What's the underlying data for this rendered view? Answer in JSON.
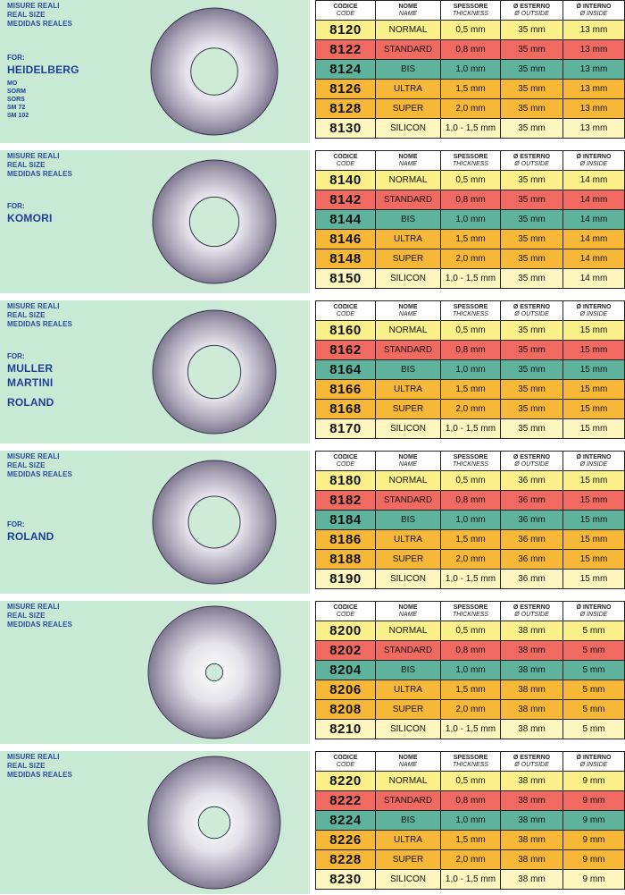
{
  "header": {
    "code": [
      "CODICE",
      "CODE"
    ],
    "name": [
      "NOME",
      "NAME"
    ],
    "thickness": [
      "SPESSORE",
      "THICKNESS"
    ],
    "outside": [
      "Ø ESTERNO",
      "Ø OUTSIDE"
    ],
    "inside": [
      "Ø INTERNO",
      "Ø INSIDE"
    ]
  },
  "size_labels": [
    "MISURE REALI",
    "REAL SIZE",
    "MEDIDAS REALES"
  ],
  "colors": {
    "NORMAL": "#fbf08a",
    "STANDARD": "#f06a62",
    "BIS": "#5fb39c",
    "ULTRA": "#f7b837",
    "SUPER": "#f7b837",
    "SILICON": "#fdf7bf"
  },
  "sections": [
    {
      "for_label": "FOR:",
      "brands": [
        "HEIDELBERG"
      ],
      "models": [
        "MO",
        "SORM",
        "SORS",
        "SM 72",
        "SM 102"
      ],
      "hole_ratio": 0.37,
      "rows": [
        {
          "code": "8120",
          "name": "NORMAL",
          "thickness": "0,5 mm",
          "outside": "35 mm",
          "inside": "13 mm"
        },
        {
          "code": "8122",
          "name": "STANDARD",
          "thickness": "0,8 mm",
          "outside": "35 mm",
          "inside": "13 mm"
        },
        {
          "code": "8124",
          "name": "BIS",
          "thickness": "1,0 mm",
          "outside": "35 mm",
          "inside": "13 mm"
        },
        {
          "code": "8126",
          "name": "ULTRA",
          "thickness": "1,5 mm",
          "outside": "35 mm",
          "inside": "13 mm"
        },
        {
          "code": "8128",
          "name": "SUPER",
          "thickness": "2,0 mm",
          "outside": "35 mm",
          "inside": "13 mm"
        },
        {
          "code": "8130",
          "name": "SILICON",
          "thickness": "1,0 - 1,5 mm",
          "outside": "35 mm",
          "inside": "13 mm"
        }
      ]
    },
    {
      "for_label": "FOR:",
      "brands": [
        "KOMORI"
      ],
      "models": [],
      "hole_ratio": 0.4,
      "rows": [
        {
          "code": "8140",
          "name": "NORMAL",
          "thickness": "0,5 mm",
          "outside": "35 mm",
          "inside": "14 mm"
        },
        {
          "code": "8142",
          "name": "STANDARD",
          "thickness": "0,8 mm",
          "outside": "35 mm",
          "inside": "14 mm"
        },
        {
          "code": "8144",
          "name": "BIS",
          "thickness": "1,0 mm",
          "outside": "35 mm",
          "inside": "14 mm"
        },
        {
          "code": "8146",
          "name": "ULTRA",
          "thickness": "1,5 mm",
          "outside": "35 mm",
          "inside": "14 mm"
        },
        {
          "code": "8148",
          "name": "SUPER",
          "thickness": "2,0 mm",
          "outside": "35 mm",
          "inside": "14 mm"
        },
        {
          "code": "8150",
          "name": "SILICON",
          "thickness": "1,0 - 1,5 mm",
          "outside": "35 mm",
          "inside": "14 mm"
        }
      ]
    },
    {
      "for_label": "FOR:",
      "brands": [
        "MULLER",
        "MARTINI",
        "ROLAND"
      ],
      "models": [],
      "hole_ratio": 0.43,
      "rows": [
        {
          "code": "8160",
          "name": "NORMAL",
          "thickness": "0,5 mm",
          "outside": "35 mm",
          "inside": "15 mm"
        },
        {
          "code": "8162",
          "name": "STANDARD",
          "thickness": "0,8 mm",
          "outside": "35 mm",
          "inside": "15 mm"
        },
        {
          "code": "8164",
          "name": "BIS",
          "thickness": "1,0 mm",
          "outside": "35 mm",
          "inside": "15 mm"
        },
        {
          "code": "8166",
          "name": "ULTRA",
          "thickness": "1,5 mm",
          "outside": "35 mm",
          "inside": "15 mm"
        },
        {
          "code": "8168",
          "name": "SUPER",
          "thickness": "2,0 mm",
          "outside": "35 mm",
          "inside": "15 mm"
        },
        {
          "code": "8170",
          "name": "SILICON",
          "thickness": "1,0 - 1,5 mm",
          "outside": "35 mm",
          "inside": "15 mm"
        }
      ]
    },
    {
      "for_label": "FOR:",
      "brands": [
        "ROLAND"
      ],
      "models": [],
      "hole_ratio": 0.42,
      "rows": [
        {
          "code": "8180",
          "name": "NORMAL",
          "thickness": "0,5 mm",
          "outside": "36 mm",
          "inside": "15 mm"
        },
        {
          "code": "8182",
          "name": "STANDARD",
          "thickness": "0,8 mm",
          "outside": "36 mm",
          "inside": "15 mm"
        },
        {
          "code": "8184",
          "name": "BIS",
          "thickness": "1,0 mm",
          "outside": "36 mm",
          "inside": "15 mm"
        },
        {
          "code": "8186",
          "name": "ULTRA",
          "thickness": "1,5 mm",
          "outside": "36 mm",
          "inside": "15 mm"
        },
        {
          "code": "8188",
          "name": "SUPER",
          "thickness": "2,0 mm",
          "outside": "36 mm",
          "inside": "15 mm"
        },
        {
          "code": "8190",
          "name": "SILICON",
          "thickness": "1,0 - 1,5 mm",
          "outside": "36 mm",
          "inside": "15 mm"
        }
      ]
    },
    {
      "for_label": "",
      "brands": [],
      "models": [],
      "hole_ratio": 0.13,
      "rows": [
        {
          "code": "8200",
          "name": "NORMAL",
          "thickness": "0,5 mm",
          "outside": "38 mm",
          "inside": "5 mm"
        },
        {
          "code": "8202",
          "name": "STANDARD",
          "thickness": "0,8 mm",
          "outside": "38 mm",
          "inside": "5 mm"
        },
        {
          "code": "8204",
          "name": "BIS",
          "thickness": "1,0 mm",
          "outside": "38 mm",
          "inside": "5 mm"
        },
        {
          "code": "8206",
          "name": "ULTRA",
          "thickness": "1,5 mm",
          "outside": "38 mm",
          "inside": "5 mm"
        },
        {
          "code": "8208",
          "name": "SUPER",
          "thickness": "2,0 mm",
          "outside": "38 mm",
          "inside": "5 mm"
        },
        {
          "code": "8210",
          "name": "SILICON",
          "thickness": "1,0 - 1,5 mm",
          "outside": "38 mm",
          "inside": "5 mm"
        }
      ]
    },
    {
      "for_label": "",
      "brands": [],
      "models": [],
      "hole_ratio": 0.24,
      "rows": [
        {
          "code": "8220",
          "name": "NORMAL",
          "thickness": "0,5 mm",
          "outside": "38 mm",
          "inside": "9 mm"
        },
        {
          "code": "8222",
          "name": "STANDARD",
          "thickness": "0,8 mm",
          "outside": "38 mm",
          "inside": "9 mm"
        },
        {
          "code": "8224",
          "name": "BIS",
          "thickness": "1,0 mm",
          "outside": "38 mm",
          "inside": "9 mm"
        },
        {
          "code": "8226",
          "name": "ULTRA",
          "thickness": "1,5 mm",
          "outside": "38 mm",
          "inside": "9 mm"
        },
        {
          "code": "8228",
          "name": "SUPER",
          "thickness": "2,0 mm",
          "outside": "38 mm",
          "inside": "9 mm"
        },
        {
          "code": "8230",
          "name": "SILICON",
          "thickness": "1,0 - 1,5 mm",
          "outside": "38 mm",
          "inside": "9 mm"
        }
      ]
    }
  ]
}
